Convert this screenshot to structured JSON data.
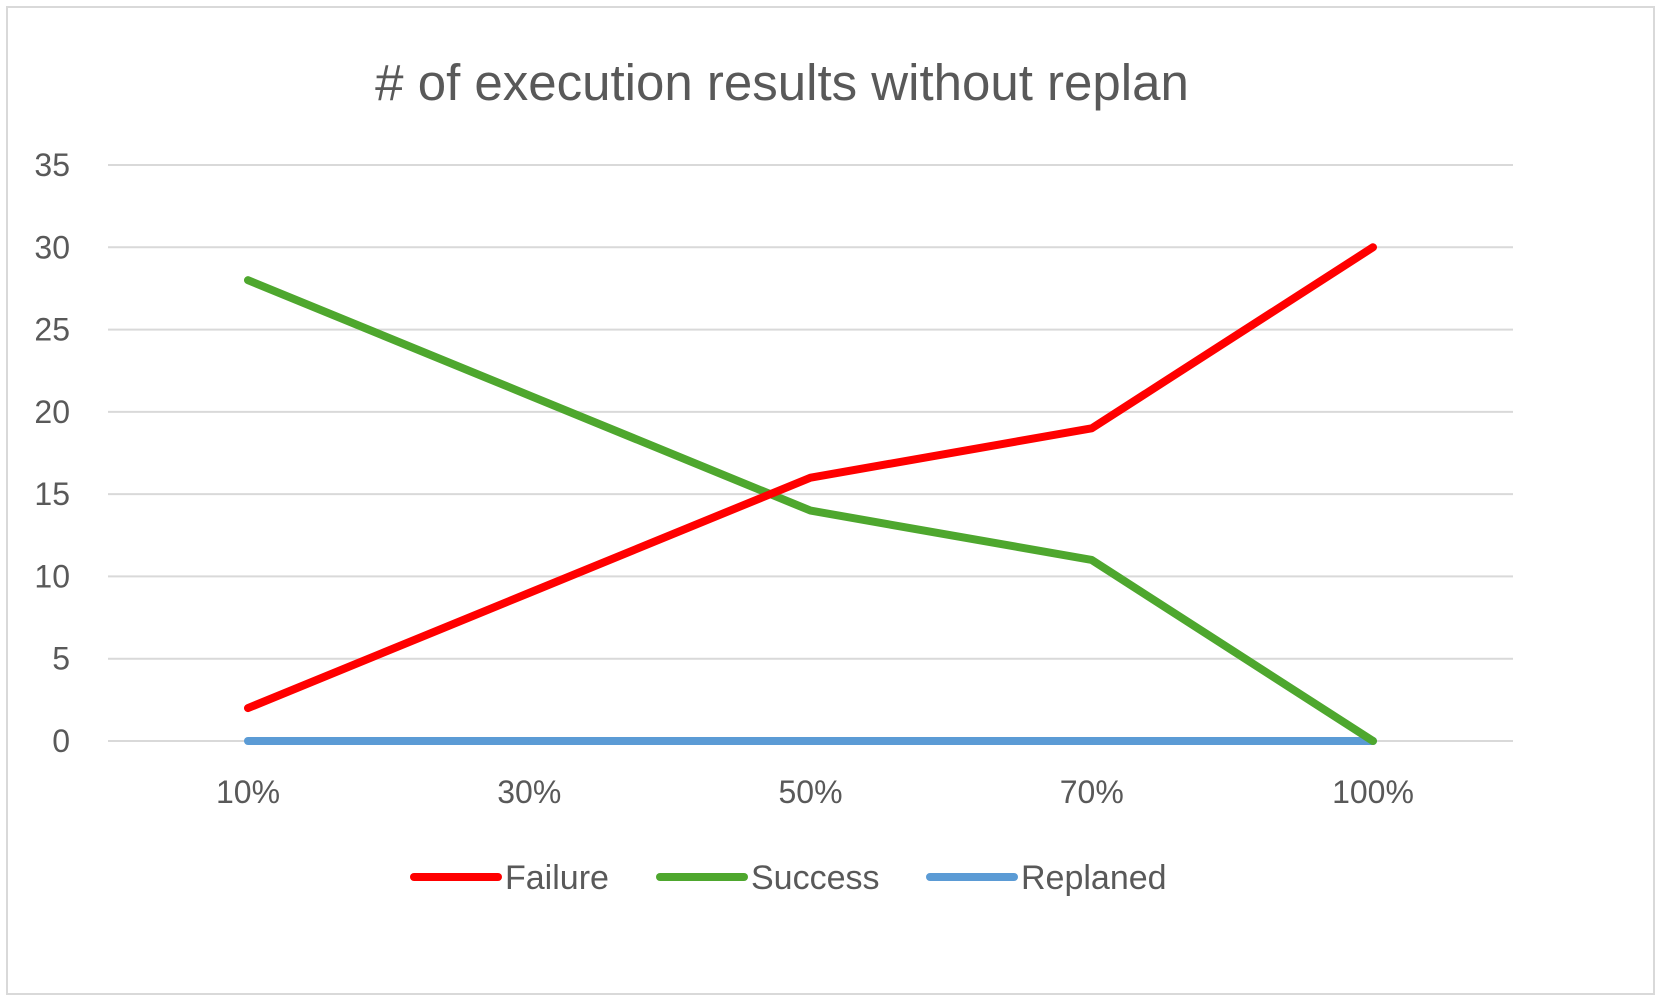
{
  "chart_data": {
    "type": "line",
    "title": "# of execution results without replan",
    "categories": [
      "10%",
      "30%",
      "50%",
      "70%",
      "100%"
    ],
    "ylim": [
      0,
      35
    ],
    "yticks": [
      0,
      5,
      10,
      15,
      20,
      25,
      30,
      35
    ],
    "grid": true,
    "legend_position": "bottom",
    "series": [
      {
        "name": "Failure",
        "color": "#ff0000",
        "values": [
          2,
          9,
          16,
          19,
          30
        ]
      },
      {
        "name": "Success",
        "color": "#4ea72e",
        "values": [
          28,
          21,
          14,
          11,
          0
        ]
      },
      {
        "name": "Replaned",
        "color": "#5b9bd5",
        "values": [
          0,
          0,
          0,
          0,
          0
        ]
      }
    ]
  }
}
